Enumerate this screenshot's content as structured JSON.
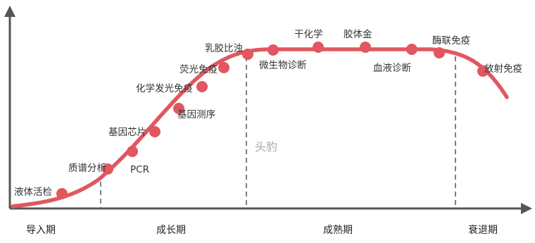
{
  "colors": {
    "curve": "#e0575f",
    "axis": "#555555",
    "divider": "#555555",
    "text": "#333333",
    "watermark": "#a8a8a8"
  },
  "watermark": "头豹",
  "phases": [
    {
      "key": "intro",
      "label": "导入期"
    },
    {
      "key": "growth",
      "label": "成长期"
    },
    {
      "key": "mature",
      "label": "成熟期"
    },
    {
      "key": "decline",
      "label": "衰退期"
    }
  ],
  "technologies": [
    {
      "label": "液体活检",
      "phase": "intro"
    },
    {
      "label": "质谱分析",
      "phase": "growth"
    },
    {
      "label": "PCR",
      "phase": "growth"
    },
    {
      "label": "基因芯片",
      "phase": "growth"
    },
    {
      "label": "基因测序",
      "phase": "growth"
    },
    {
      "label": "化学发光免疫",
      "phase": "growth"
    },
    {
      "label": "荧光免疫",
      "phase": "growth"
    },
    {
      "label": "乳胶比浊",
      "phase": "mature"
    },
    {
      "label": "微生物诊断",
      "phase": "mature"
    },
    {
      "label": "干化学",
      "phase": "mature"
    },
    {
      "label": "胶体金",
      "phase": "mature"
    },
    {
      "label": "血液诊断",
      "phase": "mature"
    },
    {
      "label": "酶联免疫",
      "phase": "decline"
    },
    {
      "label": "放射免疫",
      "phase": "decline"
    }
  ]
}
